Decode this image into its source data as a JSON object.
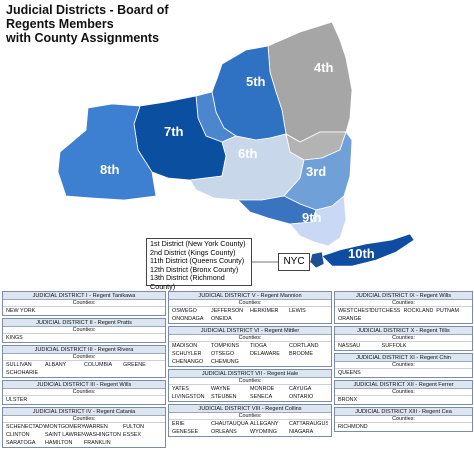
{
  "title_line1": "Judicial Districts - Board of Regents Members",
  "title_line2": "with County Assignments",
  "map": {
    "labels": [
      "7th",
      "5th",
      "4th",
      "8th",
      "6th",
      "3rd",
      "9th",
      "10th"
    ],
    "nyc_label": "NYC",
    "nyc_districts": [
      "1st District (New York County)",
      "2nd District (Kings County)",
      "11th District (Queens County)",
      "12th District (Bronx County)",
      "13th District (Richmond County)"
    ]
  },
  "counties_label": "Counties:",
  "districts": [
    {
      "header": "JUDICIAL DISTRICT I - Regent Tanikawa",
      "counties": [
        "NEW YORK"
      ]
    },
    {
      "header": "JUDICIAL DISTRICT II - Regent Pratts",
      "counties": [
        "KINGS"
      ]
    },
    {
      "header": "JUDICIAL DISTRICT III - Regent Rivera",
      "counties": [
        "SULLIVAN",
        "ALBANY",
        "COLUMBIA",
        "GREENE",
        "SCHOHARIE"
      ]
    },
    {
      "header": "JUDICIAL DISTRICT III - Regent Wills",
      "counties": [
        "ULSTER"
      ]
    },
    {
      "header": "JUDICIAL DISTRICT IV - Regent Catania",
      "counties": [
        "SCHENECTADY",
        "MONTGOMERY",
        "WARREN",
        "FULTON",
        "CLINTON",
        "SAINT LAWRENCE",
        "WASHINGTON",
        "ESSEX",
        "SARATOGA",
        "HAMILTON",
        "FRANKLIN"
      ]
    },
    {
      "header": "JUDICIAL DISTRICT V - Regent Mannion",
      "counties": [
        "OSWEGO",
        "JEFFERSON",
        "HERKIMER",
        "LEWIS",
        "ONONDAGA",
        "ONEIDA"
      ]
    },
    {
      "header": "JUDICIAL DISTRICT VI - Regent Mittler",
      "counties": [
        "MADISON",
        "TOMPKINS",
        "TIOGA",
        "CORTLAND",
        "SCHUYLER",
        "OTSEGO",
        "DELAWARE",
        "BROOME",
        "CHENANGO",
        "CHEMUNG"
      ]
    },
    {
      "header": "JUDICIAL DISTRICT VII - Regent Hale",
      "counties": [
        "YATES",
        "WAYNE",
        "MONROE",
        "CAYUGA",
        "LIVINGSTON",
        "STEUBEN",
        "SENECA",
        "ONTARIO"
      ]
    },
    {
      "header": "JUDICIAL DISTRICT VIII - Regent Collins",
      "counties": [
        "ERIE",
        "CHAUTAUQUA",
        "ALLEGANY",
        "CATTARAUGUS",
        "GENESEE",
        "ORLEANS",
        "WYOMING",
        "NIAGARA"
      ]
    },
    {
      "header": "JUDICIAL DISTRICT IX - Regent Wills",
      "counties": [
        "WESTCHESTER",
        "DUTCHESS",
        "ROCKLAND",
        "PUTNAM",
        "ORANGE"
      ]
    },
    {
      "header": "JUDICIAL DISTRICT X - Regent Tillis",
      "counties": [
        "NASSAU",
        "SUFFOLK"
      ]
    },
    {
      "header": "JUDICIAL DISTRICT XI - Regent Chin",
      "counties": [
        "QUEENS"
      ]
    },
    {
      "header": "JUDICIAL DISTRICT XII - Regent Ferrer",
      "counties": [
        "BRONX"
      ]
    },
    {
      "header": "JUDICIAL DISTRICT XIII - Regent Cea",
      "counties": [
        "RICHMOND"
      ]
    }
  ],
  "colors": {
    "district_7": "#0b4fa0",
    "district_5": "#2f72c4",
    "district_8": "#3d7fd0",
    "district_4": "#a6a6a6",
    "district_6": "#c8d8ea",
    "district_3": "#6fa0d8",
    "district_9": "#c9d9f5",
    "district_10": "#0f4da2",
    "header_bg": "#dde5f0"
  }
}
